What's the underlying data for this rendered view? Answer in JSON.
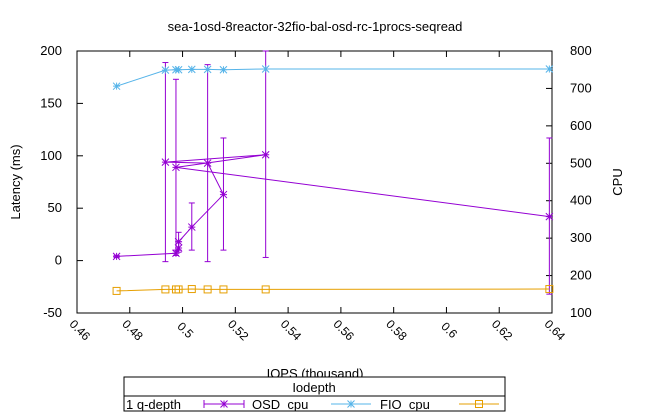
{
  "chart_data": {
    "type": "line",
    "title": "sea-1osd-8reactor-32fio-bal-osd-rc-1procs-seqread",
    "xlabel": "IOPS (thousand)",
    "ylabel": "Latency (ms)",
    "y2label": "CPU",
    "xlim": [
      0.46,
      0.64
    ],
    "ylim": [
      -50,
      200
    ],
    "y2lim": [
      100,
      800
    ],
    "x_ticks": [
      "0.46",
      "0.48",
      "0.5",
      "0.52",
      "0.54",
      "0.56",
      "0.58",
      "0.6",
      "0.62",
      "0.64"
    ],
    "y_ticks": [
      "-50",
      "0",
      "50",
      "100",
      "150",
      "200"
    ],
    "y2_ticks": [
      "100",
      "200",
      "300",
      "400",
      "500",
      "600",
      "700",
      "800"
    ],
    "grid": false,
    "legend": {
      "title": "Iodepth",
      "placement": "bottom",
      "entries": [
        "1 q-depth",
        "OSD_cpu",
        "FIO_cpu"
      ]
    },
    "series": [
      {
        "name": "1 q-depth",
        "axis": "y",
        "color": "#9400d3",
        "marker": "star",
        "errorbars": true,
        "points": [
          {
            "x": 0.475,
            "y": 4,
            "lo": 3,
            "hi": 5
          },
          {
            "x": 0.4975,
            "y": 7,
            "lo": 5,
            "hi": 10
          },
          {
            "x": 0.4985,
            "y": 12,
            "lo": 8,
            "hi": 18
          },
          {
            "x": 0.4985,
            "y": 18,
            "lo": 10,
            "hi": 27
          },
          {
            "x": 0.5035,
            "y": 32,
            "lo": 10,
            "hi": 55
          },
          {
            "x": 0.5155,
            "y": 63,
            "lo": 10,
            "hi": 117
          },
          {
            "x": 0.5095,
            "y": 93,
            "lo": -1,
            "hi": 187
          },
          {
            "x": 0.4935,
            "y": 94,
            "lo": -1,
            "hi": 189
          },
          {
            "x": 0.5315,
            "y": 101,
            "lo": 3,
            "hi": 200
          },
          {
            "x": 0.4975,
            "y": 89,
            "lo": 5,
            "hi": 173
          },
          {
            "x": 0.639,
            "y": 42,
            "lo": -32,
            "hi": 117
          }
        ]
      },
      {
        "name": "OSD_cpu",
        "axis": "y2",
        "color": "#56b4e9",
        "marker": "asterisk",
        "points": [
          {
            "x": 0.475,
            "y": 706
          },
          {
            "x": 0.4935,
            "y": 749
          },
          {
            "x": 0.4975,
            "y": 750
          },
          {
            "x": 0.4985,
            "y": 750
          },
          {
            "x": 0.5035,
            "y": 751
          },
          {
            "x": 0.5095,
            "y": 751
          },
          {
            "x": 0.5155,
            "y": 750
          },
          {
            "x": 0.5315,
            "y": 752
          },
          {
            "x": 0.639,
            "y": 752
          }
        ]
      },
      {
        "name": "FIO_cpu",
        "axis": "y2",
        "color": "#e69f00",
        "marker": "square",
        "points": [
          {
            "x": 0.475,
            "y": 159
          },
          {
            "x": 0.4935,
            "y": 163
          },
          {
            "x": 0.4975,
            "y": 163
          },
          {
            "x": 0.4985,
            "y": 163
          },
          {
            "x": 0.5035,
            "y": 164
          },
          {
            "x": 0.5095,
            "y": 163
          },
          {
            "x": 0.5155,
            "y": 163
          },
          {
            "x": 0.5315,
            "y": 163
          },
          {
            "x": 0.639,
            "y": 164
          }
        ]
      }
    ]
  }
}
